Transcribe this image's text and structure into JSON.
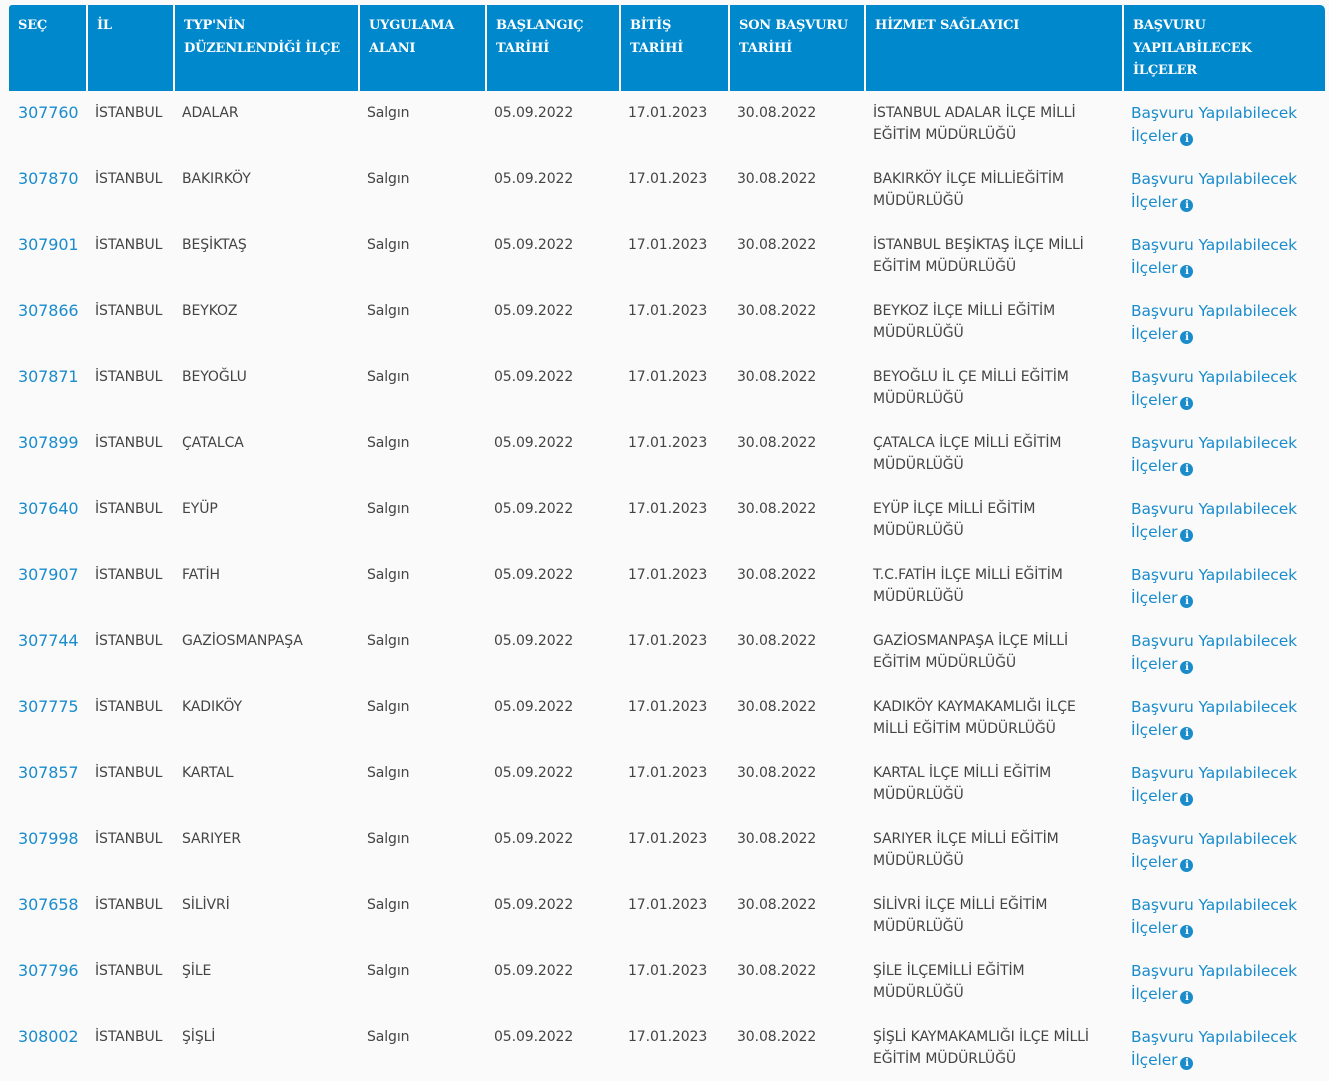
{
  "headers": [
    "SEÇ",
    "İL",
    "TYP'NİN DÜZENLENDİĞİ İLÇE",
    "UYGULAMA ALANI",
    "BAŞLANGIÇ TARİHİ",
    "BİTİŞ TARİHİ",
    "SON BAŞVURU TARİHİ",
    "HİZMET SAĞLAYICI",
    "BAŞVURU YAPILABİLECEK İLÇELER"
  ],
  "link_label": "Başvuru Yapılabilecek İlçeler",
  "info_icon": "info-circle-icon",
  "accent_color": "#0088cc",
  "rows": [
    {
      "id": "307760",
      "il": "İSTANBUL",
      "ilce": "ADALAR",
      "alan": "Salgın",
      "start": "05.09.2022",
      "end": "17.01.2023",
      "last": "30.08.2022",
      "provider": "İSTANBUL ADALAR İLÇE MİLLİ EĞİTİM MÜDÜRLÜĞÜ"
    },
    {
      "id": "307870",
      "il": "İSTANBUL",
      "ilce": "BAKIRKÖY",
      "alan": "Salgın",
      "start": "05.09.2022",
      "end": "17.01.2023",
      "last": "30.08.2022",
      "provider": "BAKIRKÖY İLÇE MİLLİEĞİTİM MÜDÜRLÜĞÜ"
    },
    {
      "id": "307901",
      "il": "İSTANBUL",
      "ilce": "BEŞİKTAŞ",
      "alan": "Salgın",
      "start": "05.09.2022",
      "end": "17.01.2023",
      "last": "30.08.2022",
      "provider": "İSTANBUL BEŞİKTAŞ İLÇE MİLLİ EĞİTİM MÜDÜRLÜĞÜ"
    },
    {
      "id": "307866",
      "il": "İSTANBUL",
      "ilce": "BEYKOZ",
      "alan": "Salgın",
      "start": "05.09.2022",
      "end": "17.01.2023",
      "last": "30.08.2022",
      "provider": "BEYKOZ İLÇE MİLLİ EĞİTİM MÜDÜRLÜĞÜ"
    },
    {
      "id": "307871",
      "il": "İSTANBUL",
      "ilce": "BEYOĞLU",
      "alan": "Salgın",
      "start": "05.09.2022",
      "end": "17.01.2023",
      "last": "30.08.2022",
      "provider": "BEYOĞLU İL ÇE MİLLİ EĞİTİM MÜDÜRLÜĞÜ"
    },
    {
      "id": "307899",
      "il": "İSTANBUL",
      "ilce": "ÇATALCA",
      "alan": "Salgın",
      "start": "05.09.2022",
      "end": "17.01.2023",
      "last": "30.08.2022",
      "provider": "ÇATALCA İLÇE MİLLİ EĞİTİM MÜDÜRLÜĞÜ"
    },
    {
      "id": "307640",
      "il": "İSTANBUL",
      "ilce": "EYÜP",
      "alan": "Salgın",
      "start": "05.09.2022",
      "end": "17.01.2023",
      "last": "30.08.2022",
      "provider": "EYÜP İLÇE MİLLİ EĞİTİM MÜDÜRLÜĞÜ"
    },
    {
      "id": "307907",
      "il": "İSTANBUL",
      "ilce": "FATİH",
      "alan": "Salgın",
      "start": "05.09.2022",
      "end": "17.01.2023",
      "last": "30.08.2022",
      "provider": "T.C.FATİH İLÇE MİLLİ EĞİTİM MÜDÜRLÜĞÜ"
    },
    {
      "id": "307744",
      "il": "İSTANBUL",
      "ilce": "GAZİOSMANPAŞA",
      "alan": "Salgın",
      "start": "05.09.2022",
      "end": "17.01.2023",
      "last": "30.08.2022",
      "provider": "GAZİOSMANPAŞA İLÇE MİLLİ EĞİTİM MÜDÜRLÜĞÜ"
    },
    {
      "id": "307775",
      "il": "İSTANBUL",
      "ilce": "KADIKÖY",
      "alan": "Salgın",
      "start": "05.09.2022",
      "end": "17.01.2023",
      "last": "30.08.2022",
      "provider": "KADIKÖY KAYMAKAMLIĞI İLÇE MİLLİ EĞİTİM MÜDÜRLÜĞÜ"
    },
    {
      "id": "307857",
      "il": "İSTANBUL",
      "ilce": "KARTAL",
      "alan": "Salgın",
      "start": "05.09.2022",
      "end": "17.01.2023",
      "last": "30.08.2022",
      "provider": "KARTAL İLÇE MİLLİ EĞİTİM MÜDÜRLÜĞÜ"
    },
    {
      "id": "307998",
      "il": "İSTANBUL",
      "ilce": "SARIYER",
      "alan": "Salgın",
      "start": "05.09.2022",
      "end": "17.01.2023",
      "last": "30.08.2022",
      "provider": "SARIYER İLÇE MİLLİ EĞİTİM MÜDÜRLÜĞÜ"
    },
    {
      "id": "307658",
      "il": "İSTANBUL",
      "ilce": "SİLİVRİ",
      "alan": "Salgın",
      "start": "05.09.2022",
      "end": "17.01.2023",
      "last": "30.08.2022",
      "provider": "SİLİVRİ İLÇE MİLLİ EĞİTİM MÜDÜRLÜĞÜ"
    },
    {
      "id": "307796",
      "il": "İSTANBUL",
      "ilce": "ŞİLE",
      "alan": "Salgın",
      "start": "05.09.2022",
      "end": "17.01.2023",
      "last": "30.08.2022",
      "provider": "ŞİLE İLÇEMİLLİ EĞİTİM MÜDÜRLÜĞÜ"
    },
    {
      "id": "308002",
      "il": "İSTANBUL",
      "ilce": "ŞİŞLİ",
      "alan": "Salgın",
      "start": "05.09.2022",
      "end": "17.01.2023",
      "last": "30.08.2022",
      "provider": "ŞİŞLİ KAYMAKAMLIĞI İLÇE MİLLİ EĞİTİM MÜDÜRLÜĞÜ"
    }
  ]
}
